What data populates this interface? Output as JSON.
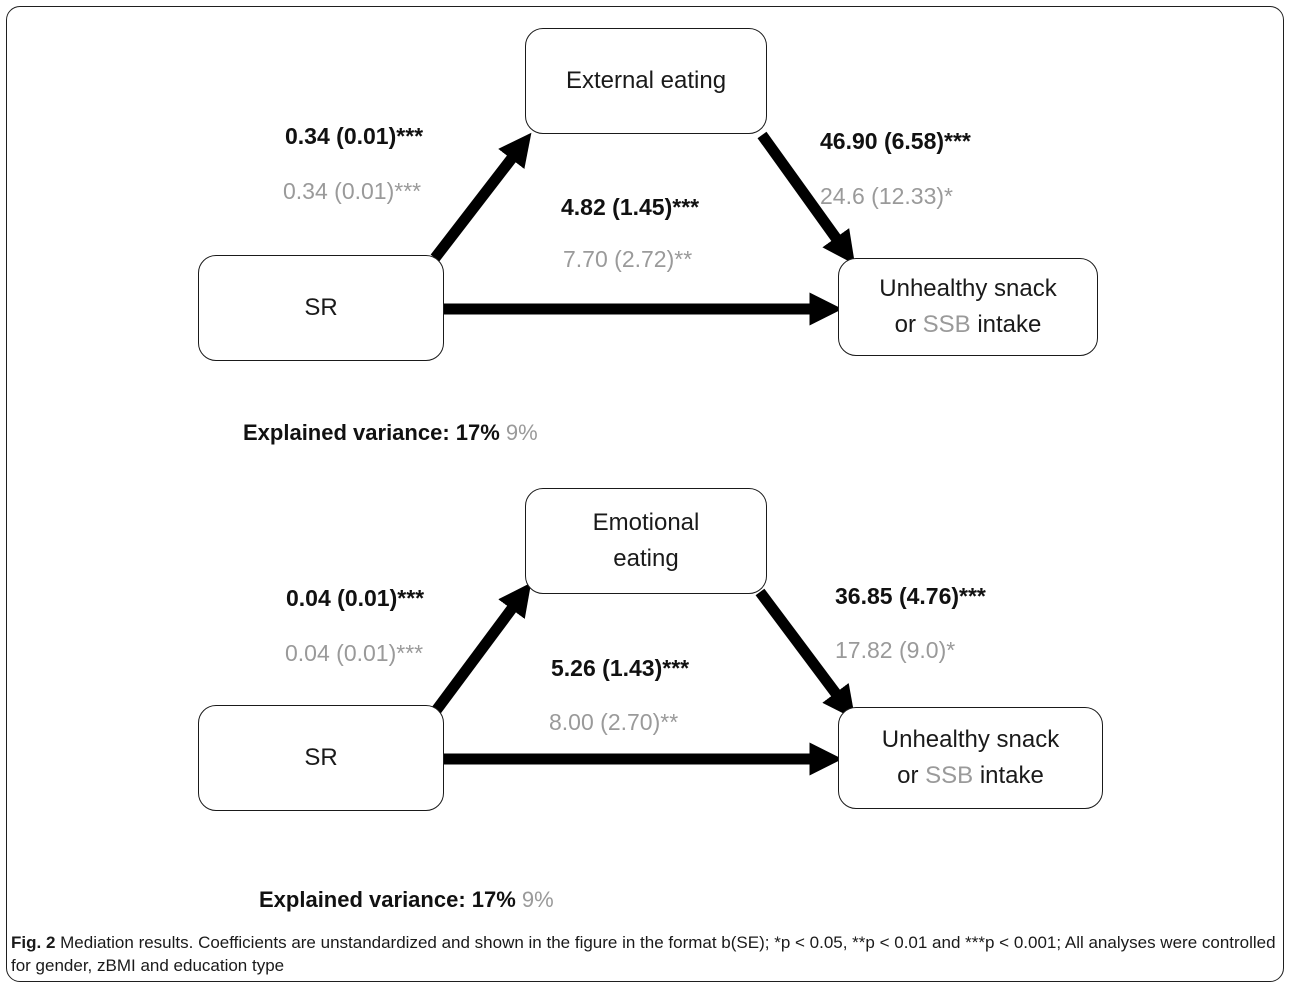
{
  "panels": [
    {
      "mediator": "External eating",
      "predictor": "SR",
      "outcome_line1": "Unhealthy snack",
      "outcome_prefix": "or ",
      "outcome_ssb": "SSB",
      "outcome_suffix": " intake",
      "a_bold": "0.34 (0.01)***",
      "a_grey": "0.34 (0.01)***",
      "b_bold": "46.90 (6.58)***",
      "b_grey": "24.6 (12.33)*",
      "c_bold": "4.82 (1.45)***",
      "c_grey": "7.70 (2.72)**",
      "explained_label": "Explained variance: 17%",
      "explained_grey": " 9%"
    },
    {
      "mediator_line1": "Emotional",
      "mediator_line2": "eating",
      "predictor": "SR",
      "outcome_line1": "Unhealthy snack",
      "outcome_prefix": "or ",
      "outcome_ssb": "SSB",
      "outcome_suffix": " intake",
      "a_bold": "0.04 (0.01)***",
      "a_grey": "0.04 (0.01)***",
      "b_bold": "36.85 (4.76)***",
      "b_grey": "17.82 (9.0)*",
      "c_bold": "5.26 (1.43)***",
      "c_grey": "8.00 (2.70)**",
      "explained_label": "Explained variance: 17%",
      "explained_grey": " 9%"
    }
  ],
  "caption": {
    "fig_label": "Fig. 2",
    "text": " Mediation results. Coefficients are unstandardized and shown in the figure in the format b(SE); *p < 0.05, **p < 0.01 and ***p < 0.001; All analyses were controlled for gender, zBMI and education type"
  },
  "colors": {
    "primary_text": "#111111",
    "secondary_text": "#9a9a9a",
    "arrow": "#000000"
  }
}
